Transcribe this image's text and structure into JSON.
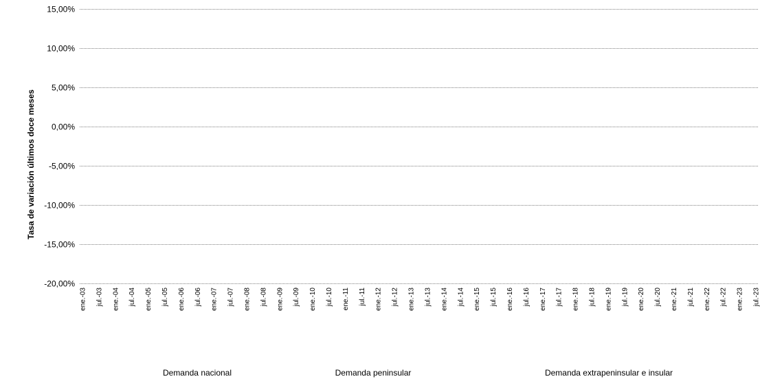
{
  "chart_data": {
    "type": "line",
    "title": "",
    "xlabel": "",
    "ylabel": "Tasa de variación últimos doce meses",
    "ylim": [
      -0.2,
      0.15
    ],
    "y_ticks": [
      "15,00%",
      "10,00%",
      "5,00%",
      "0,00%",
      "-5,00%",
      "-10,00%",
      "-15,00%",
      "-20,00%"
    ],
    "y_tick_values": [
      0.15,
      0.1,
      0.05,
      0.0,
      -0.05,
      -0.1,
      -0.15,
      -0.2
    ],
    "x_ticks": [
      "ene.-03",
      "jul.-03",
      "ene.-04",
      "jul.-04",
      "ene.-05",
      "jul.-05",
      "ene.-06",
      "jul.-06",
      "ene.-07",
      "jul.-07",
      "ene.-08",
      "jul.-08",
      "ene.-09",
      "jul.-09",
      "ene.-10",
      "jul.-10",
      "ene.-11",
      "jul.-11",
      "ene.-12",
      "jul.-12",
      "ene.-13",
      "jul.-13",
      "ene.-14",
      "jul.-14",
      "ene.-15",
      "jul.-15",
      "ene.-16",
      "jul.-16",
      "ene.-17",
      "jul.-17",
      "ene.-18",
      "jul.-18",
      "ene.-19",
      "jul.-19",
      "ene.-20",
      "jul.-20",
      "ene.-21",
      "jul.-21",
      "ene.-22",
      "jul.-22",
      "ene.-23",
      "jul.-23"
    ],
    "grid": true,
    "legend_position": "bottom",
    "series": [
      {
        "name": "Demanda nacional",
        "values": []
      },
      {
        "name": "Demanda peninsular",
        "values": []
      },
      {
        "name": "Demanda extrapeninsular e insular",
        "values": []
      }
    ]
  }
}
